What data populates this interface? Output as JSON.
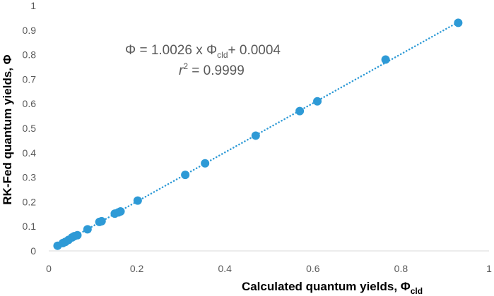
{
  "chart_data": {
    "type": "scatter",
    "xlabel": {
      "main": "Calculated quantum yields, Φ",
      "sub": "cld"
    },
    "ylabel": "RK-Fed quantum yields, Φ",
    "xlim": [
      0,
      1
    ],
    "ylim": [
      0,
      1
    ],
    "xticks": [
      "0",
      "0.2",
      "0.4",
      "0.6",
      "0.8",
      "1"
    ],
    "xtick_values": [
      0,
      0.2,
      0.4,
      0.6,
      0.8,
      1
    ],
    "yticks": [
      "0",
      "0.1",
      "0.2",
      "0.3",
      "0.4",
      "0.5",
      "0.6",
      "0.7",
      "0.8",
      "0.9",
      "1"
    ],
    "ytick_values": [
      0,
      0.1,
      0.2,
      0.3,
      0.4,
      0.5,
      0.6,
      0.7,
      0.8,
      0.9,
      1
    ],
    "grid": false,
    "marker_color": "#2E9AD6",
    "trendline": {
      "style": "dotted",
      "slope": 1.0026,
      "intercept": 0.0004,
      "x_range": [
        0.02,
        0.93
      ],
      "equation": {
        "prefix": "Φ = 1.0026 x Φ",
        "sub": "cld",
        "suffix": "+ 0.0004"
      },
      "r2": {
        "var": "r",
        "sup": "2",
        "rest": " = 0.9999"
      }
    },
    "series": [
      {
        "points": [
          [
            0.02,
            0.021
          ],
          [
            0.032,
            0.032
          ],
          [
            0.038,
            0.037
          ],
          [
            0.045,
            0.045
          ],
          [
            0.053,
            0.055
          ],
          [
            0.058,
            0.06
          ],
          [
            0.065,
            0.064
          ],
          [
            0.088,
            0.088
          ],
          [
            0.115,
            0.118
          ],
          [
            0.12,
            0.121
          ],
          [
            0.15,
            0.152
          ],
          [
            0.158,
            0.157
          ],
          [
            0.163,
            0.161
          ],
          [
            0.202,
            0.205
          ],
          [
            0.31,
            0.31
          ],
          [
            0.355,
            0.357
          ],
          [
            0.47,
            0.47
          ],
          [
            0.57,
            0.57
          ],
          [
            0.61,
            0.61
          ],
          [
            0.765,
            0.78
          ],
          [
            0.93,
            0.93
          ]
        ]
      }
    ]
  }
}
